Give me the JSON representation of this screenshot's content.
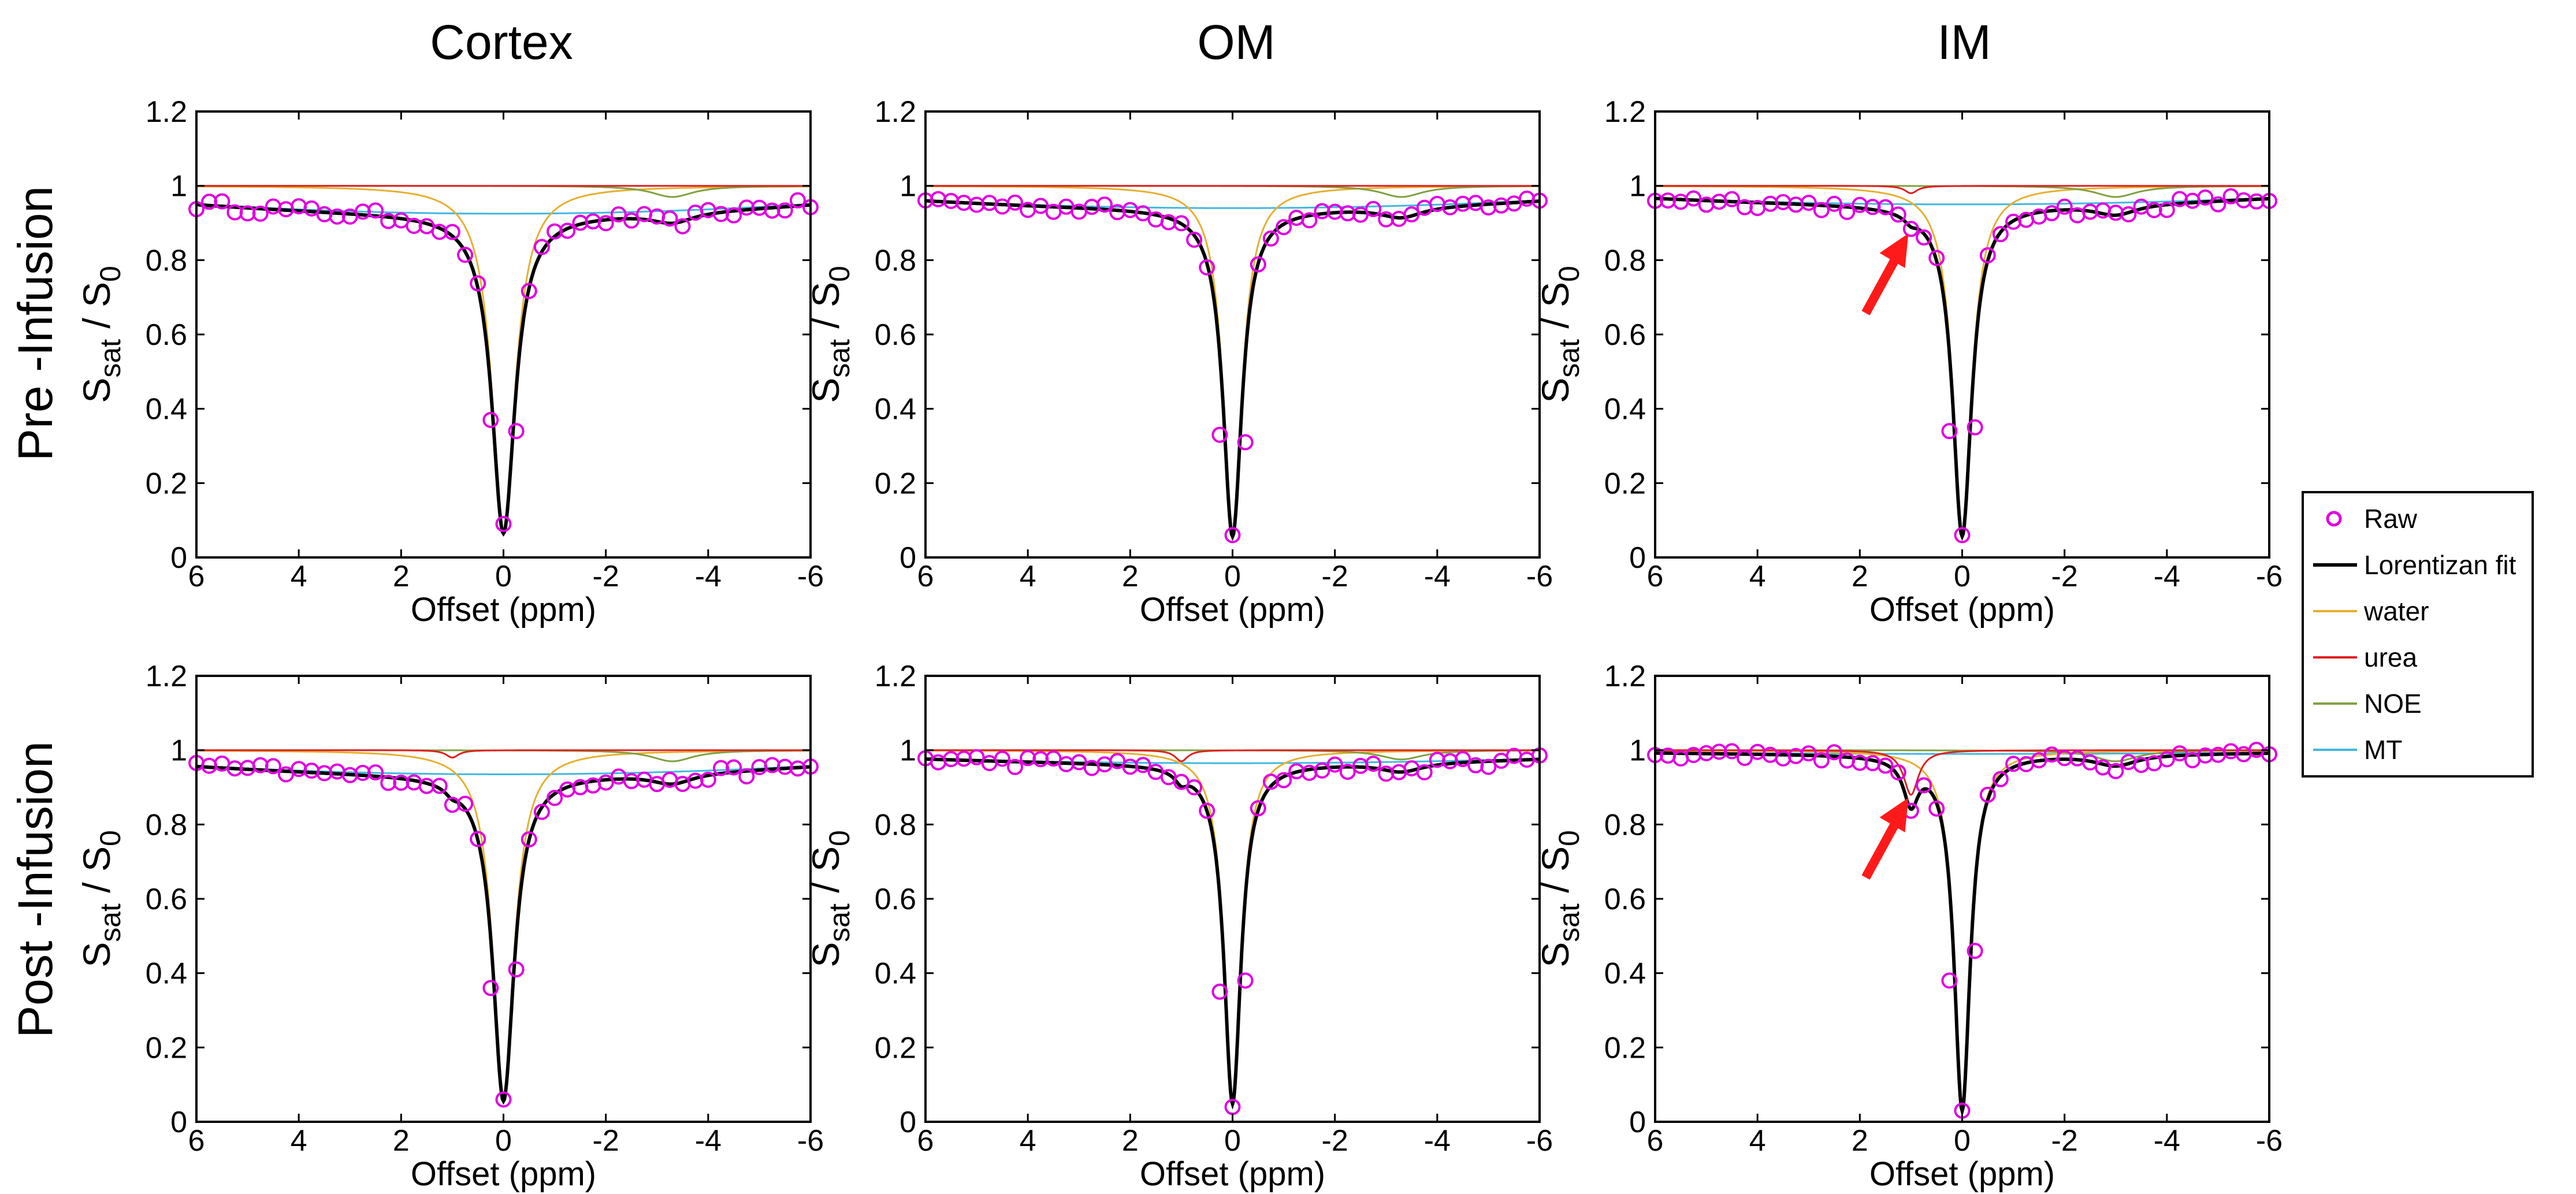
{
  "columns": [
    "Cortex",
    "OM",
    "IM"
  ],
  "rows": [
    "Pre -Infusion",
    "Post -Infusion"
  ],
  "xlabel": "Offset (ppm)",
  "ylabel": {
    "main": "S",
    "sub": "sat",
    "slash": "/",
    "main2": "S",
    "sub2": "0"
  },
  "xticks": [
    "6",
    "4",
    "2",
    "0",
    "-2",
    "-4",
    "-6"
  ],
  "yticks": [
    "0",
    "0.2",
    "0.4",
    "0.6",
    "0.8",
    "1",
    "1.2"
  ],
  "legend": [
    {
      "label": "Raw",
      "color": "#e000e0"
    },
    {
      "label": "Lorentizan fit",
      "color": "#000000"
    },
    {
      "label": "water",
      "color": "#e6b030"
    },
    {
      "label": "urea",
      "color": "#e02020"
    },
    {
      "label": "NOE",
      "color": "#80a040"
    },
    {
      "label": "MT",
      "color": "#40b8e0"
    }
  ],
  "chart_data": [
    {
      "type": "line",
      "panel": "Cortex / Pre-Infusion",
      "xlim": [
        6,
        -6
      ],
      "ylim": [
        0,
        1.2
      ],
      "params": {
        "water": {
          "a": 0.93,
          "w": 0.55
        },
        "mt": {
          "base": 0.925,
          "a": 0.075,
          "w": 60
        },
        "urea": {
          "a": 0.0
        },
        "noe": {
          "a": 0.03,
          "c": -3.3,
          "w": 1.0
        }
      },
      "raw_dips": [
        0.37,
        0.09,
        0.34
      ],
      "annotation_arrow": false
    },
    {
      "type": "line",
      "panel": "OM / Pre-Infusion",
      "xlim": [
        6,
        -6
      ],
      "ylim": [
        0,
        1.2
      ],
      "params": {
        "water": {
          "a": 0.94,
          "w": 0.45
        },
        "mt": {
          "base": 0.94,
          "a": 0.06,
          "w": 60
        },
        "urea": {
          "a": 0.0
        },
        "noe": {
          "a": 0.03,
          "c": -3.3,
          "w": 1.0
        }
      },
      "raw_dips": [
        0.33,
        0.06,
        0.31
      ],
      "annotation_arrow": false
    },
    {
      "type": "line",
      "panel": "IM / Pre-Infusion",
      "xlim": [
        6,
        -6
      ],
      "ylim": [
        0,
        1.2
      ],
      "params": {
        "water": {
          "a": 0.94,
          "w": 0.45
        },
        "mt": {
          "base": 0.95,
          "a": 0.05,
          "w": 60
        },
        "urea": {
          "a": 0.02,
          "c": 1.0,
          "w": 0.3
        },
        "noe": {
          "a": 0.03,
          "c": -3.0,
          "w": 1.0
        }
      },
      "raw_dips": [
        0.34,
        0.06,
        0.35
      ],
      "annotation_arrow": true
    },
    {
      "type": "line",
      "panel": "Cortex / Post-Infusion",
      "xlim": [
        6,
        -6
      ],
      "ylim": [
        0,
        1.2
      ],
      "params": {
        "water": {
          "a": 0.94,
          "w": 0.5
        },
        "mt": {
          "base": 0.935,
          "a": 0.065,
          "w": 60
        },
        "urea": {
          "a": 0.02,
          "c": 1.0,
          "w": 0.3
        },
        "noe": {
          "a": 0.03,
          "c": -3.3,
          "w": 1.0
        }
      },
      "raw_dips": [
        0.36,
        0.06,
        0.41
      ],
      "annotation_arrow": false
    },
    {
      "type": "line",
      "panel": "OM / Post-Infusion",
      "xlim": [
        6,
        -6
      ],
      "ylim": [
        0,
        1.2
      ],
      "params": {
        "water": {
          "a": 0.95,
          "w": 0.4
        },
        "mt": {
          "base": 0.965,
          "a": 0.035,
          "w": 60
        },
        "urea": {
          "a": 0.03,
          "c": 1.0,
          "w": 0.3
        },
        "noe": {
          "a": 0.025,
          "c": -3.3,
          "w": 1.0
        }
      },
      "raw_dips": [
        0.35,
        0.04,
        0.38
      ],
      "annotation_arrow": false
    },
    {
      "type": "line",
      "panel": "IM / Post-Infusion",
      "xlim": [
        6,
        -6
      ],
      "ylim": [
        0,
        1.2
      ],
      "params": {
        "water": {
          "a": 0.97,
          "w": 0.38
        },
        "mt": {
          "base": 0.99,
          "a": 0.01,
          "w": 60
        },
        "urea": {
          "a": 0.12,
          "c": 1.0,
          "w": 0.35
        },
        "noe": {
          "a": 0.03,
          "c": -3.0,
          "w": 1.0
        }
      },
      "raw_dips": [
        0.38,
        0.03,
        0.46
      ],
      "annotation_arrow": true
    }
  ]
}
